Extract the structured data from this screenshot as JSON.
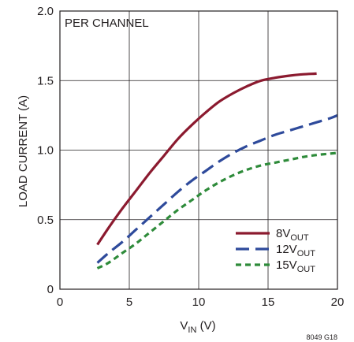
{
  "chart_data": {
    "type": "line",
    "title": "",
    "annotation": "PER CHANNEL",
    "xlabel": {
      "main": "V",
      "sub": "IN",
      "unit": " (V)"
    },
    "ylabel": "LOAD CURRENT (A)",
    "xlim": [
      0,
      20
    ],
    "ylim": [
      0,
      2.0
    ],
    "x_ticks": [
      0,
      5,
      10,
      15,
      20
    ],
    "x_tick_labels": [
      "0",
      "5",
      "10",
      "15",
      "20"
    ],
    "y_ticks": [
      0,
      0.5,
      1.0,
      1.5,
      2.0
    ],
    "y_tick_labels": [
      "0",
      "0.5",
      "1.0",
      "1.5",
      "2.0"
    ],
    "grid": true,
    "legend_position": "bottom-right",
    "figure_code": "8049 G18",
    "series": [
      {
        "name": "8V",
        "name_sub": "OUT",
        "color": "#8b1a2f",
        "dash": "solid",
        "x": [
          2.7,
          3.5,
          4.5,
          5.5,
          6.5,
          7.5,
          8.5,
          9.5,
          10.5,
          11.5,
          12.5,
          13.5,
          14.5,
          15.5,
          16.5,
          17.5,
          18.5
        ],
        "y": [
          0.32,
          0.44,
          0.58,
          0.71,
          0.84,
          0.96,
          1.08,
          1.18,
          1.27,
          1.35,
          1.41,
          1.46,
          1.5,
          1.52,
          1.535,
          1.545,
          1.55
        ]
      },
      {
        "name": "12V",
        "name_sub": "OUT",
        "color": "#2e4a9b",
        "dash": "long",
        "x": [
          2.7,
          3.5,
          4.5,
          5.5,
          6.5,
          7.5,
          8.5,
          9.5,
          10.5,
          11.5,
          12.5,
          13.5,
          14.5,
          15.5,
          16.5,
          17.5,
          18.5,
          19.5,
          20
        ],
        "y": [
          0.19,
          0.26,
          0.34,
          0.43,
          0.52,
          0.61,
          0.7,
          0.78,
          0.85,
          0.92,
          0.98,
          1.03,
          1.07,
          1.11,
          1.14,
          1.17,
          1.2,
          1.23,
          1.25
        ]
      },
      {
        "name": "15V",
        "name_sub": "OUT",
        "color": "#2e8b3a",
        "dash": "short",
        "x": [
          2.7,
          3.5,
          4.5,
          5.5,
          6.5,
          7.5,
          8.5,
          9.5,
          10.5,
          11.5,
          12.5,
          13.5,
          14.5,
          15.5,
          16.5,
          17.5,
          18.5,
          19.5,
          20
        ],
        "y": [
          0.15,
          0.19,
          0.26,
          0.33,
          0.41,
          0.49,
          0.57,
          0.64,
          0.71,
          0.77,
          0.82,
          0.86,
          0.89,
          0.91,
          0.93,
          0.95,
          0.965,
          0.975,
          0.98
        ]
      }
    ]
  }
}
